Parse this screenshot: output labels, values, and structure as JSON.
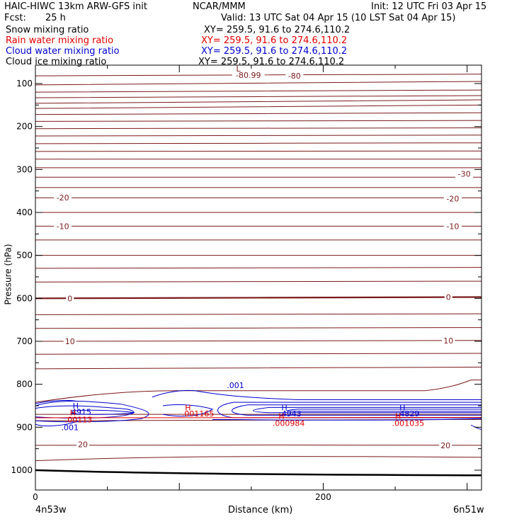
{
  "header": {
    "title_left": "HAIC-HIWC 13km ARW-GFS init",
    "center": "NCAR/MMM",
    "init": "Init: 12 UTC Fri 03 Apr 15",
    "fcst_label": "Fcst:",
    "fcst_value": "25 h",
    "valid": "Valid: 13 UTC Sat 04 Apr 15 (10 LST Sat 04 Apr 15)"
  },
  "fields": [
    {
      "name": "Snow mixing ratio",
      "xy": "XY= 259.5, 91.6 to 274.6,110.2",
      "color": "#000000"
    },
    {
      "name": "Rain water mixing ratio",
      "xy": "XY= 259.5, 91.6 to 274.6,110.2",
      "color": "#e00000"
    },
    {
      "name": "Cloud water mixing ratio",
      "xy": "XY= 259.5, 91.6 to 274.6,110.2",
      "color": "#0000cc"
    },
    {
      "name": "Cloud ice mixing ratio",
      "xy": "XY= 259.5, 91.6 to 274.6,110.2",
      "color": "#000000"
    }
  ],
  "chart_data": {
    "type": "contour-cross-section",
    "ylabel": "Pressure (hPa)",
    "xlabel": "Distance (km)",
    "ylim": [
      1050,
      50
    ],
    "xlim": [
      0,
      310
    ],
    "y_ticks": [
      100,
      200,
      300,
      400,
      500,
      600,
      700,
      800,
      900,
      1000
    ],
    "x_ticks": [
      0,
      200
    ],
    "x_end_labels": {
      "left": "4n53w",
      "right": "6n51w"
    },
    "isotherm_color": "#7a1a1a",
    "cloud_water_color": "#0000cc",
    "rain_color": "#e00000",
    "temperature_labels": [
      {
        "text": "-80.99",
        "x": 148,
        "p": 80
      },
      {
        "text": "-80",
        "x": 180,
        "p": 82
      },
      {
        "text": "-30",
        "x": 298,
        "p": 310
      },
      {
        "text": "-20",
        "x": 19,
        "p": 365
      },
      {
        "text": "-20",
        "x": 290,
        "p": 368
      },
      {
        "text": "-10",
        "x": 19,
        "p": 432
      },
      {
        "text": "-10",
        "x": 290,
        "p": 432
      },
      {
        "text": "0",
        "x": 24,
        "p": 600
      },
      {
        "text": "0",
        "x": 287,
        "p": 597
      },
      {
        "text": "10",
        "x": 24,
        "p": 700
      },
      {
        "text": "10",
        "x": 287,
        "p": 698
      },
      {
        "text": "20",
        "x": 33,
        "p": 940
      },
      {
        "text": "20",
        "x": 285,
        "p": 942
      }
    ],
    "extrema_labels": [
      {
        "text": "L",
        "x": 141,
        "p": 65,
        "color": "#7a1a1a"
      },
      {
        "text": "H",
        "x": 28,
        "p": 850,
        "color": "#0000cc"
      },
      {
        "text": "4915",
        "x": 32,
        "p": 864,
        "color": "#0000cc"
      },
      {
        "text": "H",
        "x": 26,
        "p": 866,
        "color": "#e00000"
      },
      {
        "text": ".00113",
        "x": 30,
        "p": 882,
        "color": "#e00000"
      },
      {
        "text": ".001",
        "x": 24,
        "p": 900,
        "color": "#0000cc"
      },
      {
        "text": ".001",
        "x": 139,
        "p": 802,
        "color": "#0000cc"
      },
      {
        "text": "H",
        "x": 106,
        "p": 854,
        "color": "#e00000"
      },
      {
        "text": ".001165",
        "x": 113,
        "p": 868,
        "color": "#e00000"
      },
      {
        "text": "H",
        "x": 173,
        "p": 854,
        "color": "#0000cc"
      },
      {
        "text": "4943",
        "x": 178,
        "p": 868,
        "color": "#0000cc"
      },
      {
        "text": "H",
        "x": 171,
        "p": 874,
        "color": "#e00000"
      },
      {
        "text": ".000984",
        "x": 176,
        "p": 890,
        "color": "#e00000"
      },
      {
        "text": "H",
        "x": 255,
        "p": 854,
        "color": "#0000cc"
      },
      {
        "text": "4829",
        "x": 260,
        "p": 868,
        "color": "#0000cc"
      },
      {
        "text": "H",
        "x": 252,
        "p": 874,
        "color": "#e00000"
      },
      {
        "text": ".001035",
        "x": 259,
        "p": 890,
        "color": "#e00000"
      }
    ]
  }
}
